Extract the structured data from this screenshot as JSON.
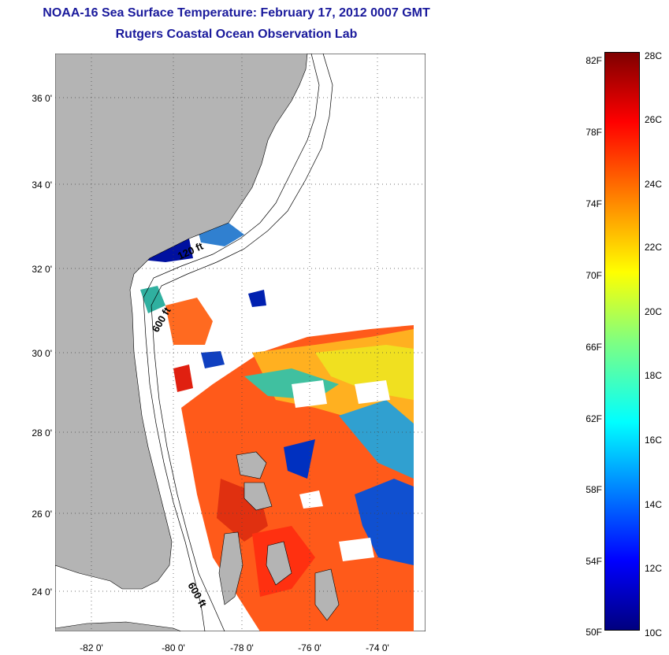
{
  "title": "NOAA-16 Sea Surface Temperature:  February 17, 2012 0007 GMT",
  "subtitle": "Rutgers Coastal Ocean Observation Lab",
  "lat_ticks": [
    "36 0'",
    "34 0'",
    "32 0'",
    "30 0'",
    "28 0'",
    "26 0'",
    "24 0'"
  ],
  "lon_ticks": [
    "-82 0'",
    "-80 0'",
    "-78 0'",
    "-76 0'",
    "-74 0'"
  ],
  "contour_labels": [
    "120 ft",
    "600 ft",
    "600 ft"
  ],
  "colorbar": {
    "f_labels": [
      "82F",
      "78F",
      "74F",
      "70F",
      "66F",
      "62F",
      "58F",
      "54F",
      "50F"
    ],
    "c_labels": [
      "28C",
      "26C",
      "24C",
      "22C",
      "20C",
      "18C",
      "16C",
      "14C",
      "12C",
      "10C"
    ]
  },
  "colors": {
    "title": "#1a1a9c",
    "land": "#b4b4b4"
  }
}
